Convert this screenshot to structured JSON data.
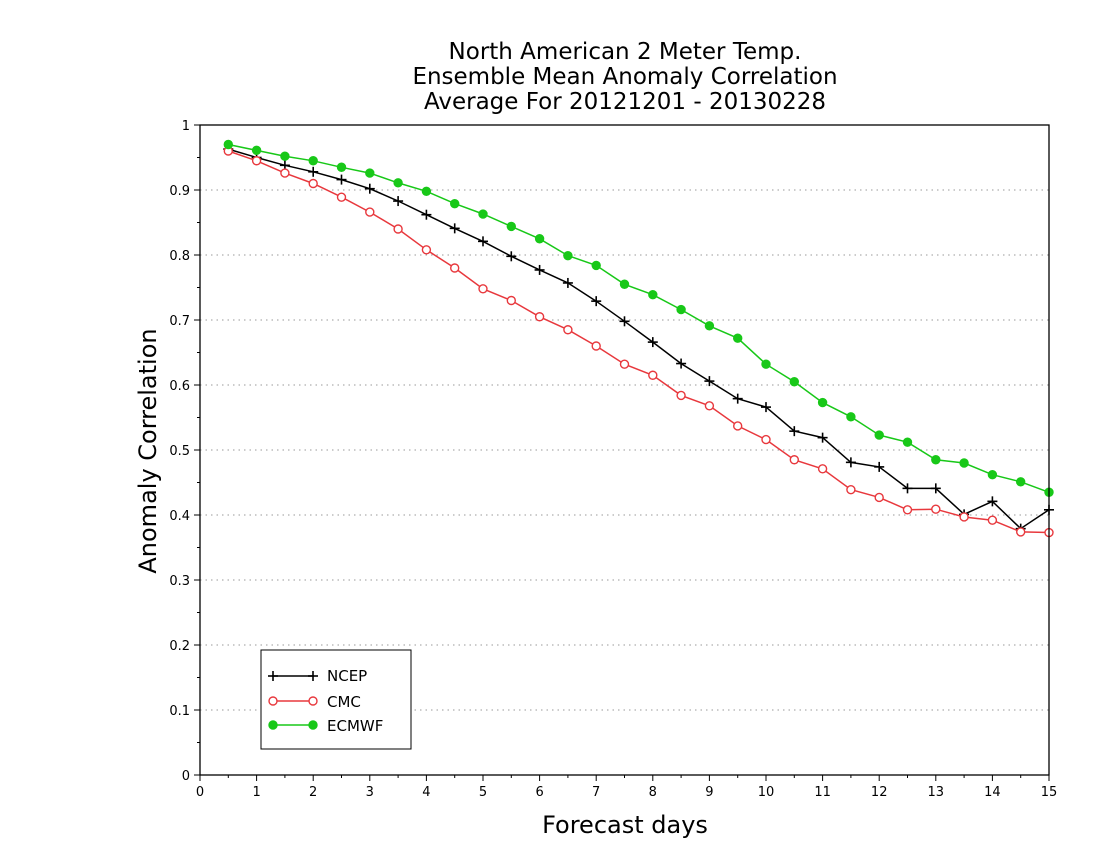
{
  "chart_data": {
    "type": "line",
    "title_lines": [
      "North American 2 Meter Temp.",
      "Ensemble Mean Anomaly Correlation",
      "Average For 20121201 - 20130228"
    ],
    "xlabel": "Forecast days",
    "ylabel": "Anomaly Correlation",
    "xlim": [
      0,
      15
    ],
    "ylim": [
      0,
      1
    ],
    "x_ticks": [
      "0",
      "1",
      "2",
      "3",
      "4",
      "5",
      "6",
      "7",
      "8",
      "9",
      "10",
      "11",
      "12",
      "13",
      "14",
      "15"
    ],
    "y_ticks": [
      "0",
      "0.1",
      "0.2",
      "0.3",
      "0.4",
      "0.5",
      "0.6",
      "0.7",
      "0.8",
      "0.9",
      "1"
    ],
    "grid": "horizontal dotted",
    "legend_position": "bottom-left",
    "x": [
      0.5,
      1,
      1.5,
      2,
      2.5,
      3,
      3.5,
      4,
      4.5,
      5,
      5.5,
      6,
      6.5,
      7,
      7.5,
      8,
      8.5,
      9,
      9.5,
      10,
      10.5,
      11,
      11.5,
      12,
      12.5,
      13,
      13.5,
      14,
      14.5,
      15
    ],
    "series": [
      {
        "name": "NCEP",
        "color": "#000000",
        "marker": "plus",
        "values": [
          0.963,
          0.95,
          0.938,
          0.928,
          0.916,
          0.902,
          0.883,
          0.862,
          0.841,
          0.821,
          0.798,
          0.777,
          0.757,
          0.729,
          0.698,
          0.666,
          0.633,
          0.606,
          0.579,
          0.566,
          0.529,
          0.519,
          0.481,
          0.474,
          0.441,
          0.441,
          0.401,
          0.421,
          0.379,
          0.408
        ]
      },
      {
        "name": "CMC",
        "color": "#e8383d",
        "marker": "open-circle",
        "values": [
          0.96,
          0.945,
          0.926,
          0.91,
          0.889,
          0.866,
          0.84,
          0.808,
          0.78,
          0.748,
          0.73,
          0.705,
          0.685,
          0.66,
          0.632,
          0.615,
          0.584,
          0.568,
          0.537,
          0.516,
          0.485,
          0.471,
          0.439,
          0.427,
          0.408,
          0.409,
          0.397,
          0.392,
          0.374,
          0.373
        ]
      },
      {
        "name": "ECMWF",
        "color": "#18c818",
        "marker": "filled-circle",
        "values": [
          0.97,
          0.961,
          0.952,
          0.945,
          0.935,
          0.926,
          0.911,
          0.898,
          0.879,
          0.863,
          0.844,
          0.825,
          0.799,
          0.784,
          0.755,
          0.739,
          0.716,
          0.691,
          0.672,
          0.632,
          0.605,
          0.573,
          0.551,
          0.523,
          0.512,
          0.485,
          0.48,
          0.462,
          0.451,
          0.435
        ]
      }
    ]
  }
}
